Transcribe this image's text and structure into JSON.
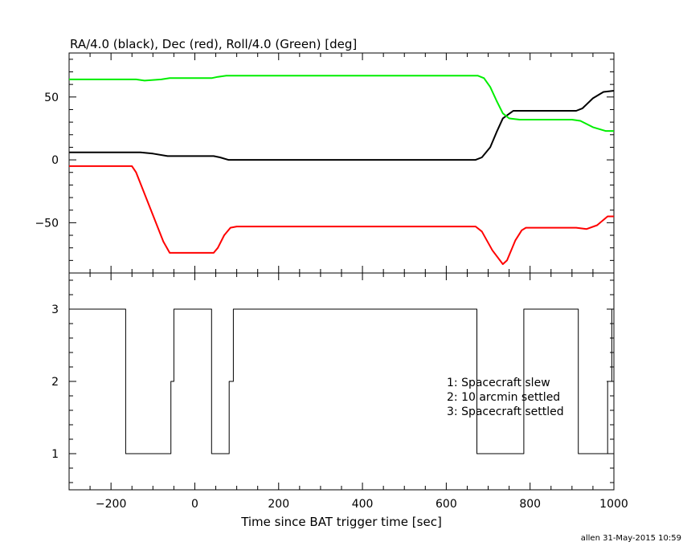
{
  "chart_data": [
    {
      "type": "line",
      "title": "RA/4.0 (black), Dec (red), Roll/4.0 (Green) [deg]",
      "xlim": [
        -300,
        1000
      ],
      "ylim": [
        -90,
        85
      ],
      "yticks": [
        -50,
        0,
        50
      ],
      "yticklabels": [
        "−50",
        "0",
        "50"
      ],
      "series": [
        {
          "color": "#000000",
          "points": [
            [
              -300,
              6
            ],
            [
              -130,
              6
            ],
            [
              -100,
              5
            ],
            [
              -65,
              3
            ],
            [
              -55,
              3
            ],
            [
              45,
              3
            ],
            [
              60,
              2
            ],
            [
              80,
              0
            ],
            [
              670,
              0
            ],
            [
              685,
              2
            ],
            [
              705,
              10
            ],
            [
              720,
              22
            ],
            [
              735,
              33
            ],
            [
              760,
              39
            ],
            [
              800,
              39
            ],
            [
              910,
              39
            ],
            [
              925,
              41
            ],
            [
              950,
              49
            ],
            [
              975,
              54
            ],
            [
              1000,
              55
            ]
          ]
        },
        {
          "color": "#ff0000",
          "points": [
            [
              -300,
              -5
            ],
            [
              -150,
              -5
            ],
            [
              -140,
              -10
            ],
            [
              -75,
              -65
            ],
            [
              -60,
              -74
            ],
            [
              45,
              -74
            ],
            [
              55,
              -70
            ],
            [
              70,
              -60
            ],
            [
              85,
              -54
            ],
            [
              100,
              -53
            ],
            [
              670,
              -53
            ],
            [
              685,
              -57
            ],
            [
              710,
              -72
            ],
            [
              735,
              -83
            ],
            [
              745,
              -80
            ],
            [
              765,
              -64
            ],
            [
              780,
              -56
            ],
            [
              790,
              -54
            ],
            [
              910,
              -54
            ],
            [
              935,
              -55
            ],
            [
              960,
              -52
            ],
            [
              985,
              -45
            ],
            [
              1000,
              -45
            ]
          ]
        },
        {
          "color": "#00ee00",
          "points": [
            [
              -300,
              64
            ],
            [
              -140,
              64
            ],
            [
              -120,
              63
            ],
            [
              -80,
              64
            ],
            [
              -60,
              65
            ],
            [
              40,
              65
            ],
            [
              55,
              66
            ],
            [
              75,
              67
            ],
            [
              675,
              67
            ],
            [
              690,
              65
            ],
            [
              705,
              58
            ],
            [
              720,
              47
            ],
            [
              735,
              37
            ],
            [
              750,
              33
            ],
            [
              775,
              32
            ],
            [
              900,
              32
            ],
            [
              920,
              31
            ],
            [
              950,
              26
            ],
            [
              980,
              23
            ],
            [
              1000,
              23
            ]
          ]
        }
      ]
    },
    {
      "type": "line",
      "xlabel": "Time since BAT trigger time [sec]",
      "xlim": [
        -300,
        1000
      ],
      "ylim": [
        0.5,
        3.5
      ],
      "xticks": [
        -200,
        0,
        200,
        400,
        600,
        800,
        1000
      ],
      "xticklabels": [
        "−200",
        "0",
        "200",
        "400",
        "600",
        "800",
        "1000"
      ],
      "yticks": [
        1,
        2,
        3
      ],
      "yticklabels": [
        "1",
        "2",
        "3"
      ],
      "annotations": [
        "1: Spacecraft slew",
        "2: 10 arcmin settled",
        "3: Spacecraft settled"
      ],
      "series": [
        {
          "color": "#000000",
          "step": true,
          "points": [
            [
              -300,
              3
            ],
            [
              -165,
              3
            ],
            [
              -165,
              1
            ],
            [
              -57,
              1
            ],
            [
              -57,
              2
            ],
            [
              -50,
              2
            ],
            [
              -50,
              3
            ],
            [
              40,
              3
            ],
            [
              40,
              1
            ],
            [
              82,
              1
            ],
            [
              82,
              2
            ],
            [
              92,
              2
            ],
            [
              92,
              3
            ],
            [
              673,
              3
            ],
            [
              673,
              1
            ],
            [
              785,
              1
            ],
            [
              785,
              3
            ],
            [
              915,
              3
            ],
            [
              915,
              1
            ],
            [
              985,
              1
            ],
            [
              985,
              2
            ],
            [
              995,
              2
            ],
            [
              995,
              3
            ],
            [
              1000,
              3
            ]
          ]
        }
      ]
    }
  ],
  "footer": "allen 31-May-2015 10:59"
}
